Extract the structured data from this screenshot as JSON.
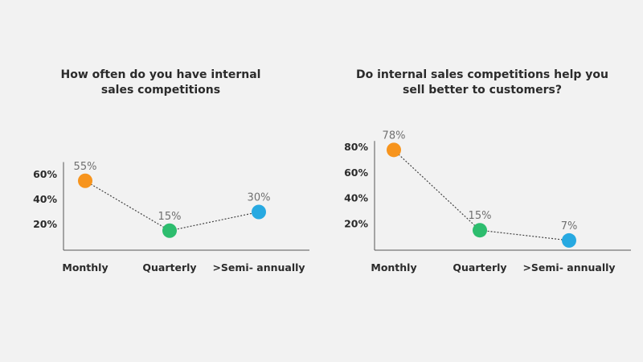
{
  "chart_data": [
    {
      "type": "line",
      "title_lines": [
        "How often do you have internal",
        "sales competitions"
      ],
      "categories": [
        "Monthly",
        "Quarterly",
        ">Semi- annually"
      ],
      "values": [
        55,
        15,
        30
      ],
      "value_labels": [
        "55%",
        "15%",
        "30%"
      ],
      "point_colors": [
        "#f7941d",
        "#2dbd6e",
        "#27a9e1"
      ],
      "yticks": [
        20,
        40,
        60
      ],
      "ytick_labels": [
        "20%",
        "40%",
        "60%"
      ],
      "ylim": [
        0,
        70
      ],
      "grid": false,
      "line_style": "dotted"
    },
    {
      "type": "line",
      "title_lines": [
        "Do internal sales competitions help you",
        "sell better to customers?"
      ],
      "categories": [
        "Monthly",
        "Quarterly",
        ">Semi- annually"
      ],
      "values": [
        78,
        15,
        7
      ],
      "value_labels": [
        "78%",
        "15%",
        "7%"
      ],
      "point_colors": [
        "#f7941d",
        "#2dbd6e",
        "#27a9e1"
      ],
      "yticks": [
        20,
        40,
        60,
        80
      ],
      "ytick_labels": [
        "20%",
        "40%",
        "60%",
        "80%"
      ],
      "ylim": [
        0,
        85
      ],
      "grid": false,
      "line_style": "dotted"
    }
  ]
}
